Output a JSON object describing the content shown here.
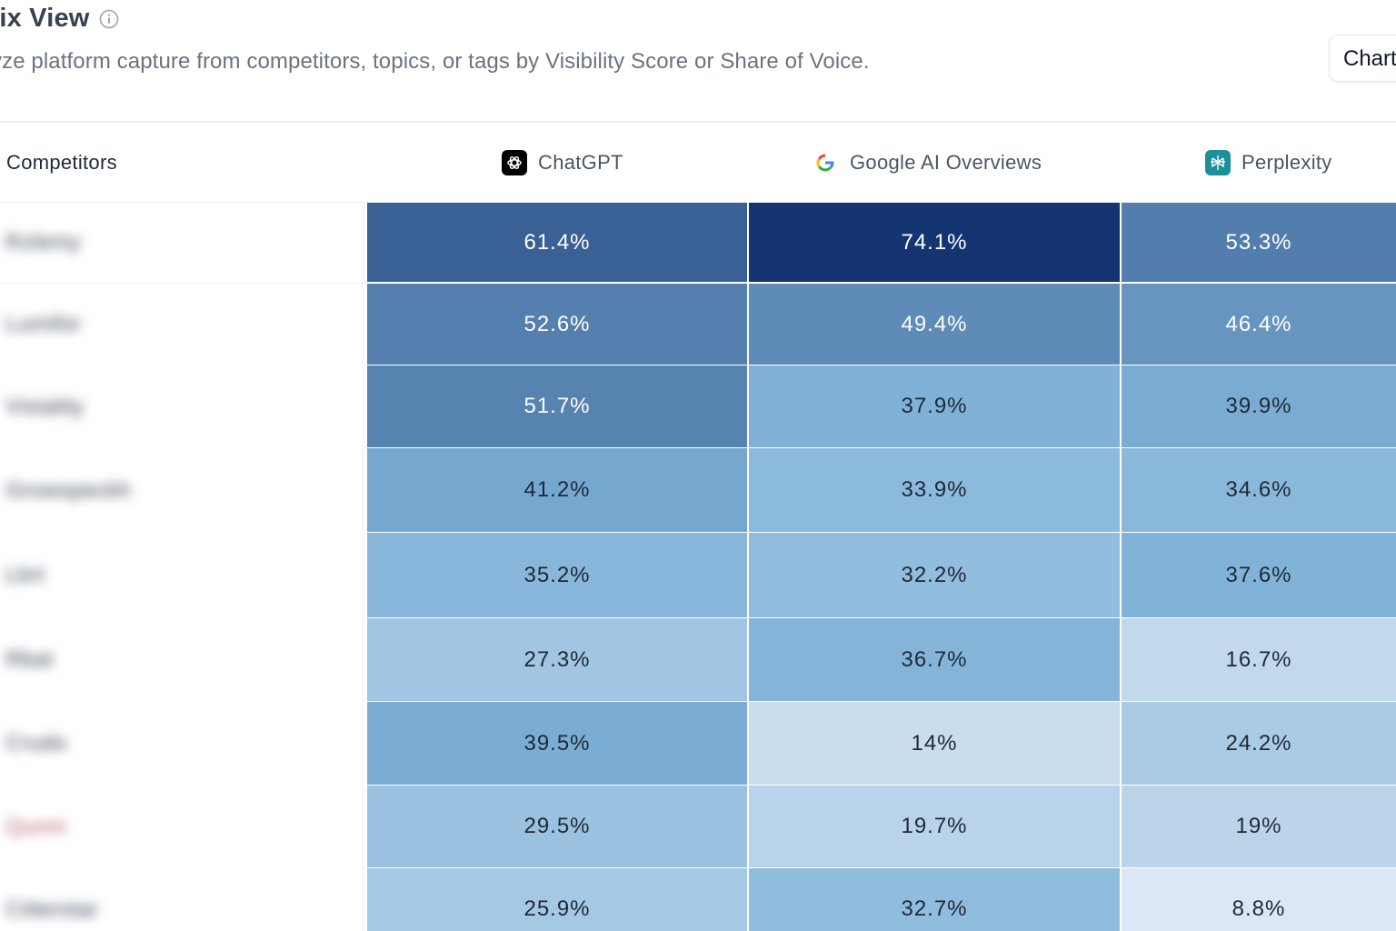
{
  "header": {
    "title": "trix View",
    "subtitle": "yze platform capture from competitors, topics, or tags by Visibility Score or Share of Voice.",
    "chart_button_label": "Chart"
  },
  "columns": {
    "first": "Competitors",
    "platforms": [
      {
        "label": "ChatGPT",
        "icon": "chatgpt-logo-icon"
      },
      {
        "label": "Google AI Overviews",
        "icon": "google-logo-icon"
      },
      {
        "label": "Perplexity",
        "icon": "perplexity-logo-icon"
      }
    ]
  },
  "rows": [
    {
      "name": "Rzlemy",
      "values": [
        "61.4%",
        "74.1%",
        "53.3%"
      ],
      "nums": [
        61.4,
        74.1,
        53.3
      ]
    },
    {
      "name": "Lumifor",
      "values": [
        "52.6%",
        "49.4%",
        "46.4%"
      ],
      "nums": [
        52.6,
        49.4,
        46.4
      ]
    },
    {
      "name": "Vistality",
      "values": [
        "51.7%",
        "37.9%",
        "39.9%"
      ],
      "nums": [
        51.7,
        37.9,
        39.9
      ]
    },
    {
      "name": "Growspeckh",
      "values": [
        "41.2%",
        "33.9%",
        "34.6%"
      ],
      "nums": [
        41.2,
        33.9,
        34.6
      ]
    },
    {
      "name": "Lbrt",
      "values": [
        "35.2%",
        "32.2%",
        "37.6%"
      ],
      "nums": [
        35.2,
        32.2,
        37.6
      ]
    },
    {
      "name": "Rbat",
      "values": [
        "27.3%",
        "36.7%",
        "16.7%"
      ],
      "nums": [
        27.3,
        36.7,
        16.7
      ]
    },
    {
      "name": "Crudo",
      "values": [
        "39.5%",
        "14%",
        "24.2%"
      ],
      "nums": [
        39.5,
        14,
        24.2
      ]
    },
    {
      "name": "Qunm",
      "values": [
        "29.5%",
        "19.7%",
        "19%"
      ],
      "nums": [
        29.5,
        19.7,
        19
      ]
    },
    {
      "name": "Citterstar",
      "values": [
        "25.9%",
        "32.7%",
        "8.8%"
      ],
      "nums": [
        25.9,
        32.7,
        8.8
      ]
    }
  ],
  "colors": {
    "scale_low": "#dde8f5",
    "scale_mid": "#7fb2d8",
    "scale_high": "#12316f",
    "text_dark": "#1f2937",
    "text_light": "#ffffff"
  }
}
